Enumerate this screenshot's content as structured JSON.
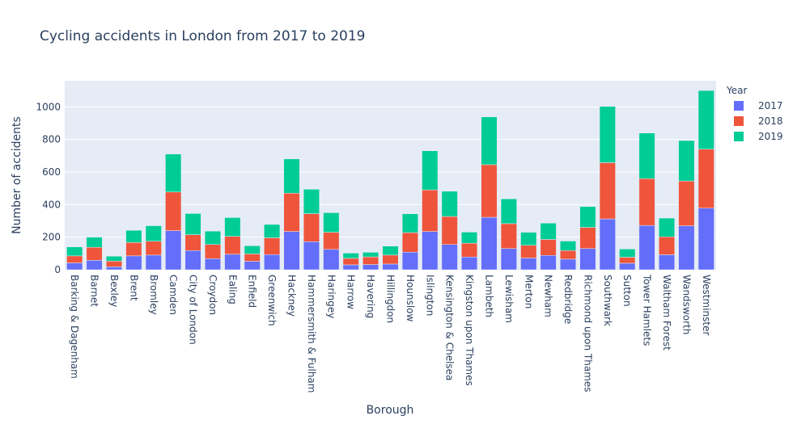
{
  "chart_data": {
    "type": "bar",
    "stacked": true,
    "title": "Cycling accidents in London from 2017 to 2019",
    "xlabel": "Borough",
    "ylabel": "Number of accidents",
    "ylim": [
      0,
      1160
    ],
    "yticks": [
      0,
      200,
      400,
      600,
      800,
      1000
    ],
    "grid": true,
    "legend_title": "Year",
    "legend_position": "top-right",
    "categories": [
      "Barking & Dagenham",
      "Barnet",
      "Bexley",
      "Brent",
      "Bromley",
      "Camden",
      "City of London",
      "Croydon",
      "Ealing",
      "Enfield",
      "Greenwich",
      "Hackney",
      "Hammersmith & Fulham",
      "Haringey",
      "Harrow",
      "Havering",
      "Hillingdon",
      "Hounslow",
      "Islington",
      "Kensington & Chelsea",
      "Kingston upon Thames",
      "Lambeth",
      "Lewisham",
      "Merton",
      "Newham",
      "Redbridge",
      "Richmond upon Thames",
      "Southwark",
      "Sutton",
      "Tower Hamlets",
      "Waltham Forest",
      "Wandsworth",
      "Westminster"
    ],
    "series": [
      {
        "name": "2017",
        "color": "#636efa",
        "values": [
          42,
          58,
          18,
          85,
          90,
          240,
          118,
          68,
          95,
          52,
          93,
          235,
          172,
          125,
          30,
          32,
          35,
          108,
          235,
          155,
          78,
          322,
          130,
          72,
          88,
          65,
          130,
          312,
          40,
          272,
          92,
          270,
          378
        ]
      },
      {
        "name": "2018",
        "color": "#ef553b",
        "values": [
          43,
          80,
          35,
          82,
          85,
          237,
          97,
          87,
          110,
          45,
          103,
          235,
          172,
          105,
          40,
          47,
          55,
          120,
          255,
          172,
          85,
          323,
          153,
          78,
          98,
          53,
          130,
          345,
          37,
          287,
          110,
          275,
          362
        ]
      },
      {
        "name": "2019",
        "color": "#00cc96",
        "values": [
          55,
          62,
          30,
          75,
          95,
          233,
          130,
          82,
          115,
          50,
          82,
          210,
          150,
          120,
          32,
          28,
          55,
          115,
          240,
          155,
          68,
          293,
          152,
          80,
          100,
          58,
          128,
          345,
          50,
          280,
          115,
          248,
          360
        ]
      }
    ]
  }
}
